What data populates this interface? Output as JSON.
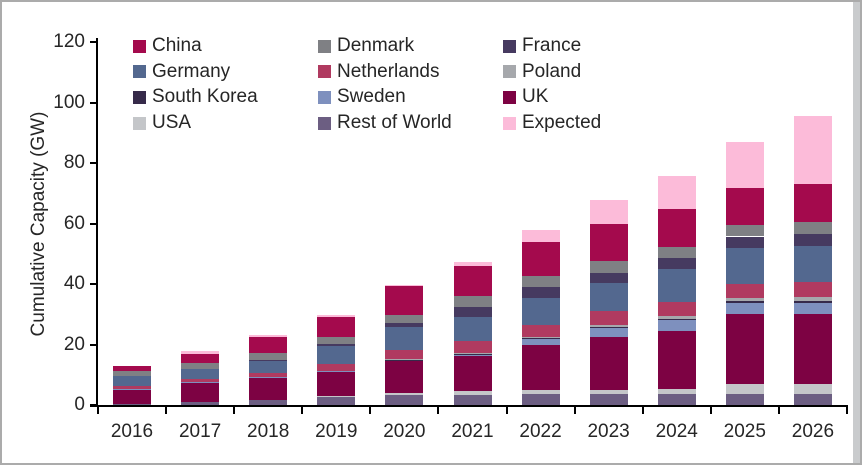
{
  "window": {
    "background_color": "#ffffff",
    "frame_color": "#ababab"
  },
  "chart_data": {
    "type": "bar",
    "stacked": true,
    "title": "",
    "xlabel": "",
    "ylabel": "Cumulative Capacity (GW)",
    "ylim": [
      0,
      120
    ],
    "yticks": [
      0,
      20,
      40,
      60,
      80,
      100,
      120
    ],
    "grid": false,
    "legend_position": "top-inside-3-columns",
    "categories": [
      "2016",
      "2017",
      "2018",
      "2019",
      "2020",
      "2021",
      "2022",
      "2023",
      "2024",
      "2025",
      "2026"
    ],
    "series": [
      {
        "name": "Rest of World",
        "color": "#6c5e82",
        "values": [
          0.4,
          1.0,
          1.6,
          2.9,
          3.2,
          3.3,
          3.6,
          3.6,
          3.6,
          3.6,
          3.6
        ]
      },
      {
        "name": "USA",
        "color": "#c4c6c9",
        "values": [
          0,
          0,
          0,
          0.1,
          0.9,
          1.3,
          1.3,
          1.4,
          1.6,
          3.3,
          3.3
        ]
      },
      {
        "name": "UK",
        "color": "#7d0243",
        "values": [
          4.6,
          6.3,
          7.3,
          7.9,
          10.3,
          11.6,
          14.8,
          17.5,
          19.1,
          23.2,
          23.2
        ]
      },
      {
        "name": "Sweden",
        "color": "#7e90be",
        "values": [
          0.2,
          0.2,
          0.2,
          0.3,
          0.5,
          0.7,
          2.0,
          3.0,
          3.7,
          3.7,
          3.7
        ]
      },
      {
        "name": "South Korea",
        "color": "#362a4a",
        "values": [
          0,
          0,
          0,
          0,
          0.1,
          0.1,
          0.3,
          0.4,
          0.5,
          0.5,
          0.6
        ]
      },
      {
        "name": "Poland",
        "color": "#a6a8ac",
        "values": [
          0,
          0,
          0,
          0,
          0.1,
          0.2,
          0.6,
          0.7,
          0.8,
          1.0,
          1.3
        ]
      },
      {
        "name": "Netherlands",
        "color": "#b03a60",
        "values": [
          1.1,
          1.1,
          1.4,
          2.5,
          3.0,
          4.0,
          4.0,
          4.6,
          4.8,
          4.8,
          4.8
        ]
      },
      {
        "name": "Germany",
        "color": "#53688f",
        "values": [
          3.4,
          3.4,
          4.2,
          5.8,
          7.8,
          7.8,
          8.9,
          9.1,
          10.9,
          11.7,
          12.1
        ]
      },
      {
        "name": "France",
        "color": "#463a60",
        "values": [
          0,
          0,
          0.3,
          0.8,
          1.3,
          3.4,
          3.4,
          3.4,
          3.5,
          3.9,
          3.9
        ]
      },
      {
        "name": "Denmark",
        "color": "#7f8084",
        "values": [
          1.4,
          2.0,
          2.2,
          2.2,
          2.6,
          3.6,
          3.8,
          3.8,
          3.8,
          3.8,
          4.0
        ]
      },
      {
        "name": "China",
        "color": "#a40a4d",
        "values": [
          1.9,
          3.0,
          5.3,
          6.5,
          9.5,
          10.0,
          11.1,
          12.4,
          12.4,
          12.4,
          12.4
        ]
      },
      {
        "name": "Expected",
        "color": "#fcbbd9",
        "values": [
          0,
          0.7,
          0.5,
          0.9,
          0.5,
          1.3,
          3.9,
          8.0,
          11.0,
          15.0,
          22.5
        ]
      }
    ],
    "legend_order": [
      "China",
      "Denmark",
      "France",
      "Germany",
      "Netherlands",
      "Poland",
      "South Korea",
      "Sweden",
      "UK",
      "USA",
      "Rest of World",
      "Expected"
    ]
  }
}
